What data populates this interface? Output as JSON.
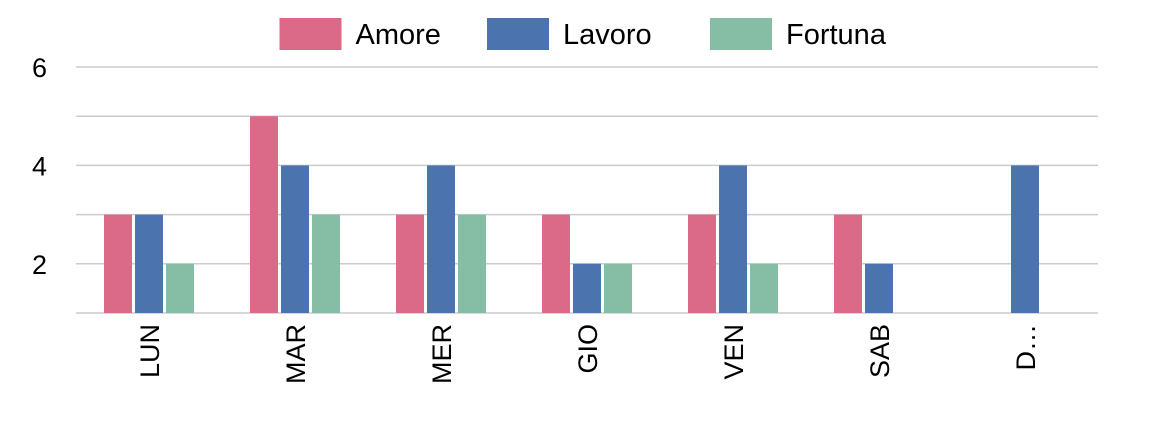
{
  "chart_data": {
    "type": "bar",
    "categories": [
      "LUN",
      "MAR",
      "MER",
      "GIO",
      "VEN",
      "SAB",
      "D…"
    ],
    "series": [
      {
        "name": "Amore",
        "color": "#db6a89",
        "values": [
          3,
          5,
          3,
          3,
          3,
          3,
          null
        ]
      },
      {
        "name": "Lavoro",
        "color": "#4b73ae",
        "values": [
          3,
          4,
          4,
          2,
          4,
          2,
          4
        ]
      },
      {
        "name": "Fortuna",
        "color": "#85bea4",
        "values": [
          2,
          3,
          3,
          2,
          2,
          null,
          null
        ]
      }
    ],
    "yticks": [
      "2",
      "4",
      "6"
    ],
    "ylim": [
      1,
      6
    ],
    "grid": true,
    "grid_step": 1,
    "legend": "top-center",
    "xlabel": "",
    "ylabel": "",
    "title": ""
  }
}
